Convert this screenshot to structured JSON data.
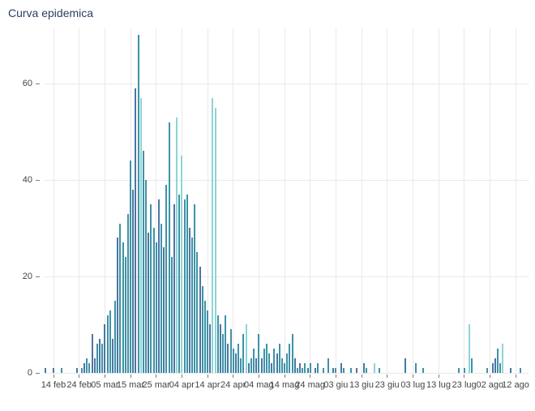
{
  "title": "Curva epidemica",
  "colors": {
    "title_text": "#2a3f5f",
    "axis_text": "#444444",
    "gridline": "#e9e9e9",
    "tick_mark": "#7a7a7a",
    "bar_dark_blue": "#4b76a2",
    "bar_teal": "#3d93a6",
    "bar_light_cyan": "#8fd3d6",
    "background": "#ffffff"
  },
  "chart_data": {
    "type": "bar",
    "title": "Curva epidemica",
    "xlabel": "",
    "ylabel": "",
    "grid": true,
    "legend_position": "none",
    "y_ticks": [
      0,
      20,
      40,
      60
    ],
    "ylim": [
      0,
      72
    ],
    "x_tick_labels": [
      "14 feb",
      "24 feb",
      "05 mar",
      "15 mar",
      "25 mar",
      "04 apr",
      "14 apr",
      "24 apr",
      "04 mag",
      "14 mag",
      "24 mag",
      "03 giu",
      "13 giu",
      "23 giu",
      "03 lug",
      "13 lug",
      "23 lug",
      "02 ago",
      "12 ago"
    ],
    "x_tick_days": [
      0,
      10,
      20,
      30,
      40,
      50,
      60,
      70,
      80,
      90,
      100,
      110,
      120,
      130,
      140,
      150,
      160,
      170,
      180
    ],
    "series_colors": [
      "#4b76a2",
      "#3d93a6",
      "#8fd3d6"
    ],
    "bars_format": "[day_offset_from_14_feb, count, color_index]",
    "bars": [
      [
        -3,
        1,
        0
      ],
      [
        0,
        1,
        0
      ],
      [
        3,
        1,
        1
      ],
      [
        9,
        1,
        0
      ],
      [
        11,
        1,
        1
      ],
      [
        12,
        2,
        0
      ],
      [
        13,
        3,
        1
      ],
      [
        14,
        2,
        1
      ],
      [
        15,
        8,
        0
      ],
      [
        16,
        3,
        0
      ],
      [
        17,
        6,
        1
      ],
      [
        18,
        7,
        0
      ],
      [
        19,
        6,
        1
      ],
      [
        20,
        10,
        0
      ],
      [
        21,
        12,
        1
      ],
      [
        22,
        13,
        1
      ],
      [
        23,
        7,
        0
      ],
      [
        24,
        15,
        1
      ],
      [
        25,
        28,
        0
      ],
      [
        26,
        31,
        1
      ],
      [
        27,
        27,
        1
      ],
      [
        28,
        24,
        1
      ],
      [
        29,
        33,
        1
      ],
      [
        30,
        44,
        1
      ],
      [
        31,
        38,
        0
      ],
      [
        32,
        59,
        0
      ],
      [
        33,
        70,
        1
      ],
      [
        34,
        57,
        2
      ],
      [
        35,
        46,
        1
      ],
      [
        36,
        40,
        1
      ],
      [
        37,
        29,
        0
      ],
      [
        38,
        35,
        1
      ],
      [
        39,
        30,
        1
      ],
      [
        40,
        27,
        1
      ],
      [
        41,
        36,
        0
      ],
      [
        42,
        31,
        1
      ],
      [
        43,
        26,
        0
      ],
      [
        44,
        39,
        1
      ],
      [
        45,
        52,
        1
      ],
      [
        46,
        24,
        1
      ],
      [
        47,
        35,
        0
      ],
      [
        48,
        53,
        2
      ],
      [
        49,
        37,
        1
      ],
      [
        50,
        45,
        2
      ],
      [
        51,
        36,
        1
      ],
      [
        52,
        37,
        1
      ],
      [
        53,
        30,
        0
      ],
      [
        54,
        28,
        1
      ],
      [
        55,
        35,
        1
      ],
      [
        56,
        25,
        1
      ],
      [
        57,
        22,
        0
      ],
      [
        58,
        18,
        1
      ],
      [
        59,
        15,
        1
      ],
      [
        60,
        13,
        1
      ],
      [
        61,
        10,
        0
      ],
      [
        62,
        57,
        2
      ],
      [
        63,
        55,
        2
      ],
      [
        64,
        12,
        1
      ],
      [
        65,
        10,
        0
      ],
      [
        66,
        8,
        1
      ],
      [
        67,
        12,
        1
      ],
      [
        68,
        6,
        0
      ],
      [
        69,
        9,
        1
      ],
      [
        70,
        5,
        1
      ],
      [
        71,
        4,
        0
      ],
      [
        72,
        6,
        1
      ],
      [
        73,
        3,
        1
      ],
      [
        74,
        8,
        1
      ],
      [
        75,
        10,
        2
      ],
      [
        76,
        2,
        0
      ],
      [
        77,
        3,
        1
      ],
      [
        78,
        5,
        1
      ],
      [
        79,
        3,
        0
      ],
      [
        80,
        8,
        1
      ],
      [
        81,
        3,
        0
      ],
      [
        82,
        5,
        1
      ],
      [
        83,
        6,
        1
      ],
      [
        84,
        4,
        1
      ],
      [
        85,
        2,
        0
      ],
      [
        86,
        5,
        1
      ],
      [
        87,
        4,
        0
      ],
      [
        88,
        6,
        1
      ],
      [
        89,
        3,
        1
      ],
      [
        90,
        2,
        1
      ],
      [
        91,
        4,
        1
      ],
      [
        92,
        6,
        1
      ],
      [
        93,
        8,
        1
      ],
      [
        94,
        3,
        0
      ],
      [
        95,
        1,
        1
      ],
      [
        96,
        2,
        0
      ],
      [
        97,
        1,
        1
      ],
      [
        98,
        2,
        1
      ],
      [
        99,
        1,
        0
      ],
      [
        100,
        2,
        1
      ],
      [
        102,
        1,
        0
      ],
      [
        103,
        2,
        1
      ],
      [
        105,
        1,
        1
      ],
      [
        107,
        3,
        1
      ],
      [
        109,
        1,
        0
      ],
      [
        110,
        1,
        1
      ],
      [
        112,
        2,
        0
      ],
      [
        113,
        1,
        1
      ],
      [
        116,
        1,
        1
      ],
      [
        118,
        1,
        0
      ],
      [
        121,
        2,
        0
      ],
      [
        122,
        1,
        1
      ],
      [
        125,
        2,
        2
      ],
      [
        127,
        1,
        1
      ],
      [
        137,
        3,
        0
      ],
      [
        141,
        2,
        1
      ],
      [
        144,
        1,
        1
      ],
      [
        158,
        1,
        1
      ],
      [
        160,
        1,
        1
      ],
      [
        162,
        10,
        2
      ],
      [
        163,
        3,
        1
      ],
      [
        169,
        1,
        1
      ],
      [
        171,
        2,
        0
      ],
      [
        172,
        3,
        0
      ],
      [
        173,
        5,
        1
      ],
      [
        174,
        2,
        1
      ],
      [
        175,
        6,
        2
      ],
      [
        178,
        1,
        0
      ],
      [
        182,
        1,
        1
      ]
    ]
  }
}
